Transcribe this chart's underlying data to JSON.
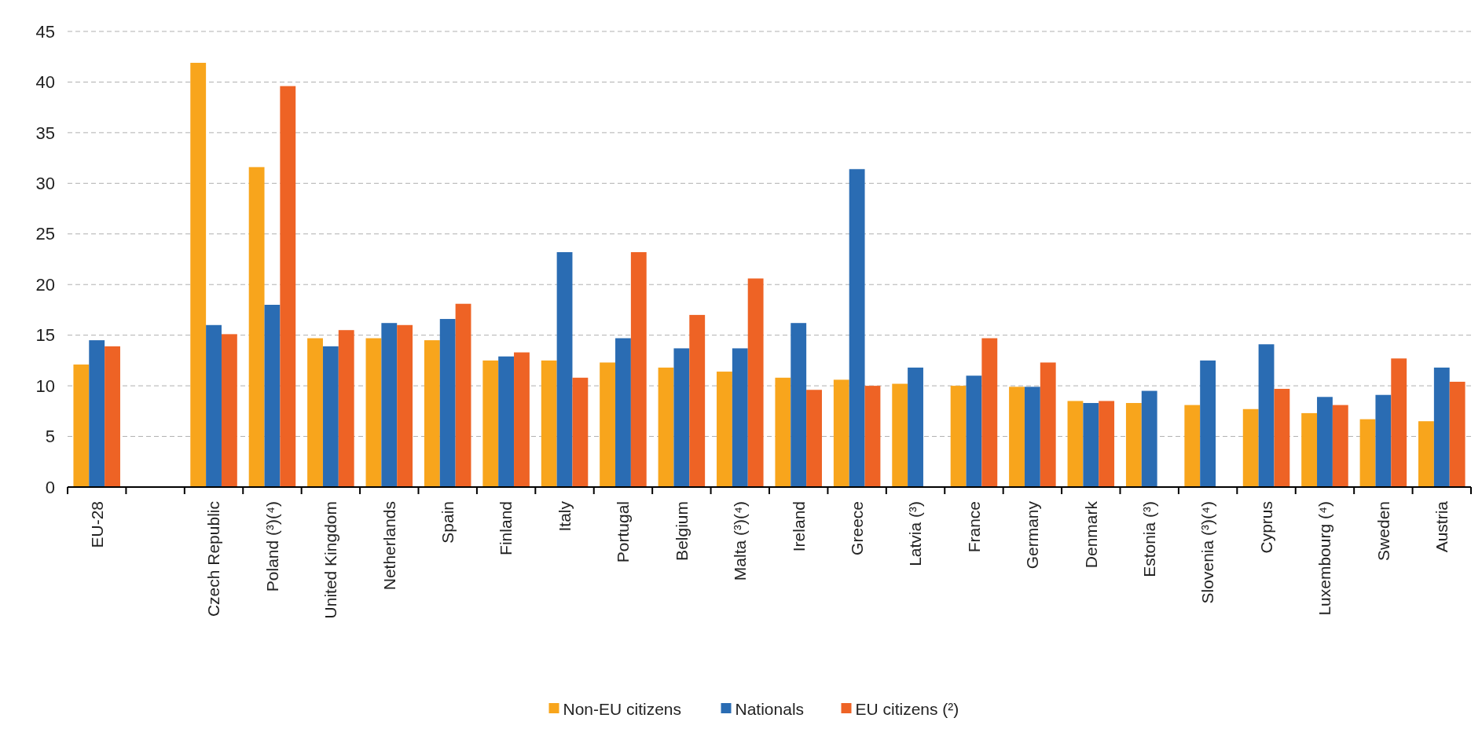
{
  "chart_data": {
    "type": "bar",
    "categories": [
      "EU-28",
      null,
      "Czech Republic",
      "Poland (³)(⁴)",
      "United Kingdom",
      "Netherlands",
      "Spain",
      "Finland",
      "Italy",
      "Portugal",
      "Belgium",
      "Malta (³)(⁴)",
      "Ireland",
      "Greece",
      "Latvia (³)",
      "France",
      "Germany",
      "Denmark",
      "Estonia (³)",
      "Slovenia  (³)(⁴)",
      "Cyprus",
      "Luxembourg  (⁴)",
      "Sweden",
      "Austria"
    ],
    "series": [
      {
        "name": "Non-EU citizens",
        "color": "#f8a51c",
        "values": [
          12.1,
          null,
          41.9,
          31.6,
          14.7,
          14.7,
          14.5,
          12.5,
          12.5,
          12.3,
          11.8,
          11.4,
          10.8,
          10.6,
          10.2,
          10.0,
          9.9,
          8.5,
          8.3,
          8.1,
          7.7,
          7.3,
          6.7,
          6.5
        ]
      },
      {
        "name": "Nationals",
        "color": "#2a6cb3",
        "values": [
          14.5,
          null,
          16.0,
          18.0,
          13.9,
          16.2,
          16.6,
          12.9,
          23.2,
          14.7,
          13.7,
          13.7,
          16.2,
          31.4,
          11.8,
          11.0,
          9.9,
          8.3,
          9.5,
          12.5,
          14.1,
          8.9,
          9.1,
          11.8
        ]
      },
      {
        "name": "EU citizens (²)",
        "color": "#ee6325",
        "values": [
          13.9,
          null,
          15.1,
          39.6,
          15.5,
          16.0,
          18.1,
          13.3,
          10.8,
          23.2,
          17.0,
          20.6,
          9.6,
          10.0,
          null,
          14.7,
          12.3,
          8.5,
          null,
          null,
          9.7,
          8.1,
          12.7,
          10.4
        ]
      }
    ],
    "ylim": [
      0,
      45
    ],
    "yticks": [
      0,
      5,
      10,
      15,
      20,
      25,
      30,
      35,
      40,
      45
    ],
    "grid": "y",
    "legend": "bottom"
  }
}
